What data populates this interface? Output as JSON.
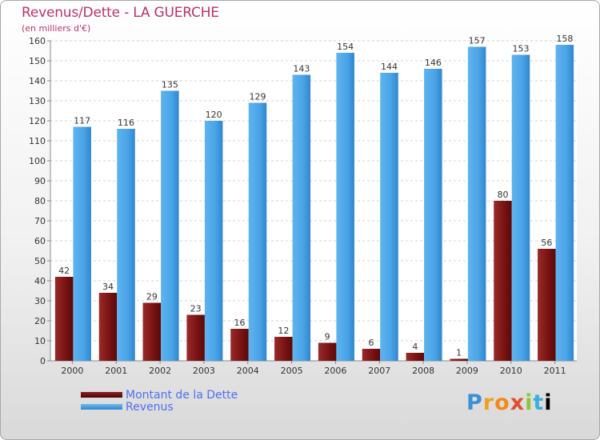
{
  "chart_data": {
    "type": "bar",
    "title": "Revenus/Dette - LA GUERCHE",
    "subtitle": "(en milliers d'€)",
    "xlabel": "",
    "ylabel": "",
    "ylim": [
      0,
      160
    ],
    "ytick_step": 10,
    "categories": [
      "2000",
      "2001",
      "2002",
      "2003",
      "2004",
      "2005",
      "2006",
      "2007",
      "2008",
      "2009",
      "2010",
      "2011"
    ],
    "series": [
      {
        "name": "Montant de la Dette",
        "color": "#7a1414",
        "values": [
          42,
          34,
          29,
          23,
          16,
          12,
          9,
          6,
          4,
          1,
          80,
          56
        ]
      },
      {
        "name": "Revenus",
        "color": "#4aa3e6",
        "values": [
          117,
          116,
          135,
          120,
          129,
          143,
          154,
          144,
          146,
          157,
          153,
          158
        ]
      }
    ],
    "legend_position": "bottom-left",
    "grid": true
  },
  "logo": {
    "letters": [
      "P",
      "r",
      "o",
      "x",
      "i",
      "t",
      "i"
    ]
  }
}
